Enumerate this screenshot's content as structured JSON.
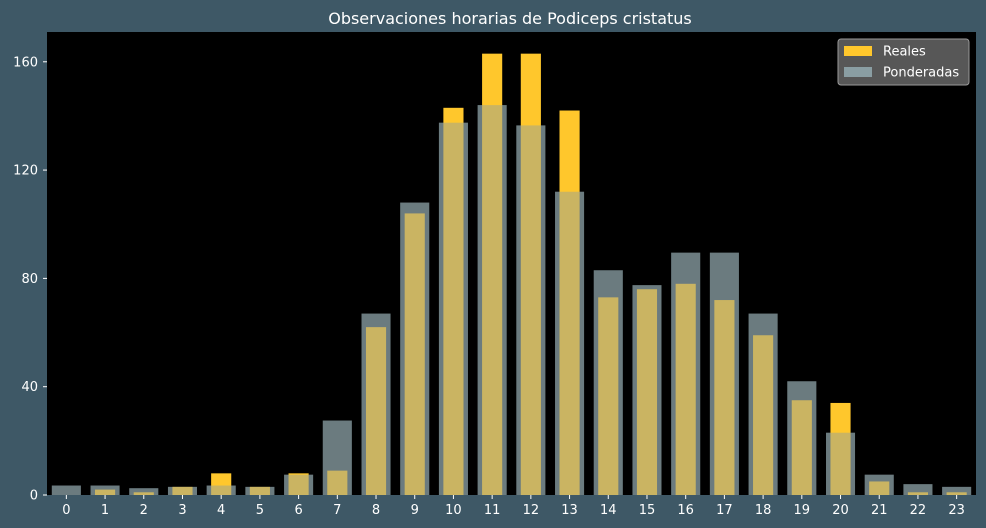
{
  "chart_data": {
    "type": "bar",
    "title": "Observaciones horarias de Podiceps cristatus",
    "xlabel": "",
    "ylabel": "",
    "categories": [
      "0",
      "1",
      "2",
      "3",
      "4",
      "5",
      "6",
      "7",
      "8",
      "9",
      "10",
      "11",
      "12",
      "13",
      "14",
      "15",
      "16",
      "17",
      "18",
      "19",
      "20",
      "21",
      "22",
      "23"
    ],
    "ylim": [
      0,
      171
    ],
    "yticks": [
      0,
      40,
      80,
      120,
      160
    ],
    "legend_position": "top-right",
    "grid": false,
    "series": [
      {
        "name": "Reales",
        "color": "#ffc72c",
        "values": [
          0,
          2,
          1,
          3,
          8,
          3,
          8,
          9,
          62,
          104,
          143,
          163,
          163,
          142,
          73,
          76,
          78,
          72,
          59,
          35,
          34,
          5,
          1,
          1
        ]
      },
      {
        "name": "Ponderadas",
        "color": "#8a9ea3",
        "values": [
          3.5,
          3.5,
          2.5,
          3,
          3.5,
          3,
          7.5,
          27.5,
          67,
          108,
          137.5,
          144,
          136.5,
          112,
          83,
          77.5,
          89.5,
          89.5,
          67,
          42,
          23,
          7.5,
          4,
          3
        ]
      }
    ],
    "colors": {
      "background": "#3e5866",
      "plot_area": "#000000",
      "text": "#ffffff"
    }
  }
}
